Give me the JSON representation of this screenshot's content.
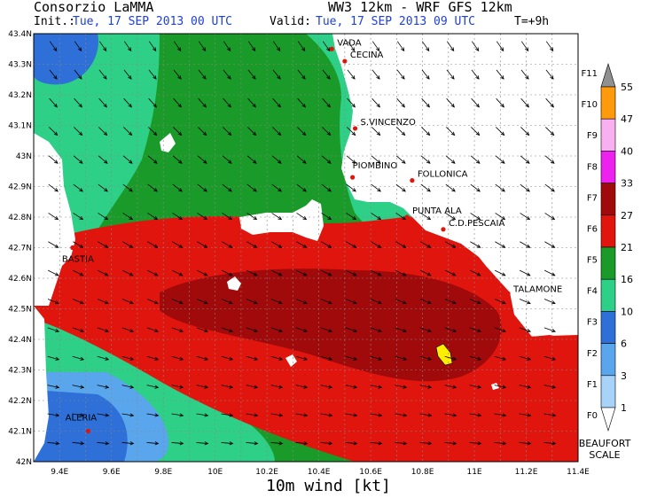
{
  "header": {
    "org": "Consorzio LaMMA",
    "model": "WW3 12km - WRF GFS 12km",
    "init_label": "Init.:",
    "init_value": "Tue, 17 SEP 2013  00 UTC",
    "valid_label": "Valid:",
    "valid_value": "Tue, 17 SEP 2013  09 UTC",
    "forecast_step": "T=+9h"
  },
  "footer": {
    "variable": "10m wind [kt]"
  },
  "axes": {
    "lat_ticks": [
      "43.4N",
      "43.3N",
      "43.2N",
      "43.1N",
      "43N",
      "42.9N",
      "42.8N",
      "42.7N",
      "42.6N",
      "42.5N",
      "42.4N",
      "42.3N",
      "42.2N",
      "42.1N",
      "42N"
    ],
    "lon_ticks": [
      "9.4E",
      "9.6E",
      "9.8E",
      "10E",
      "10.2E",
      "10.4E",
      "10.6E",
      "10.8E",
      "11E",
      "11.2E",
      "11.4E"
    ]
  },
  "places": [
    {
      "name": "VADA",
      "lon": 10.45,
      "lat": 43.35
    },
    {
      "name": "CECINA",
      "lon": 10.5,
      "lat": 43.31
    },
    {
      "name": "S.VINCENZO",
      "lon": 10.54,
      "lat": 43.09
    },
    {
      "name": "PIOMBINO",
      "lon": 10.53,
      "lat": 42.93
    },
    {
      "name": "FOLLONICA",
      "lon": 10.76,
      "lat": 42.92
    },
    {
      "name": "PUNTA ALA",
      "lon": 10.74,
      "lat": 42.8
    },
    {
      "name": "C.D.PESCAIA",
      "lon": 10.88,
      "lat": 42.76
    },
    {
      "name": "TALAMONE",
      "lon": 11.13,
      "lat": 42.55
    },
    {
      "name": "BASTIA",
      "lon": 9.45,
      "lat": 42.7
    },
    {
      "name": "ALERIA",
      "lon": 9.51,
      "lat": 42.1
    }
  ],
  "legend": {
    "classes": [
      "F0",
      "F1",
      "F2",
      "F3",
      "F4",
      "F5",
      "F6",
      "F7",
      "F8",
      "F9",
      "F10",
      "F11"
    ],
    "values": [
      "1",
      "3",
      "6",
      "10",
      "16",
      "21",
      "27",
      "33",
      "40",
      "47",
      "55"
    ],
    "colors": [
      "#ffffff",
      "#a6d3f7",
      "#5aa6ec",
      "#2e6fd8",
      "#2ecf86",
      "#1a9a28",
      "#e0160e",
      "#a00a0a",
      "#ee22ee",
      "#f8b0f0",
      "#ff9a0c",
      "#909090"
    ],
    "title_line1": "BEAUFORT",
    "title_line2": "SCALE"
  }
}
